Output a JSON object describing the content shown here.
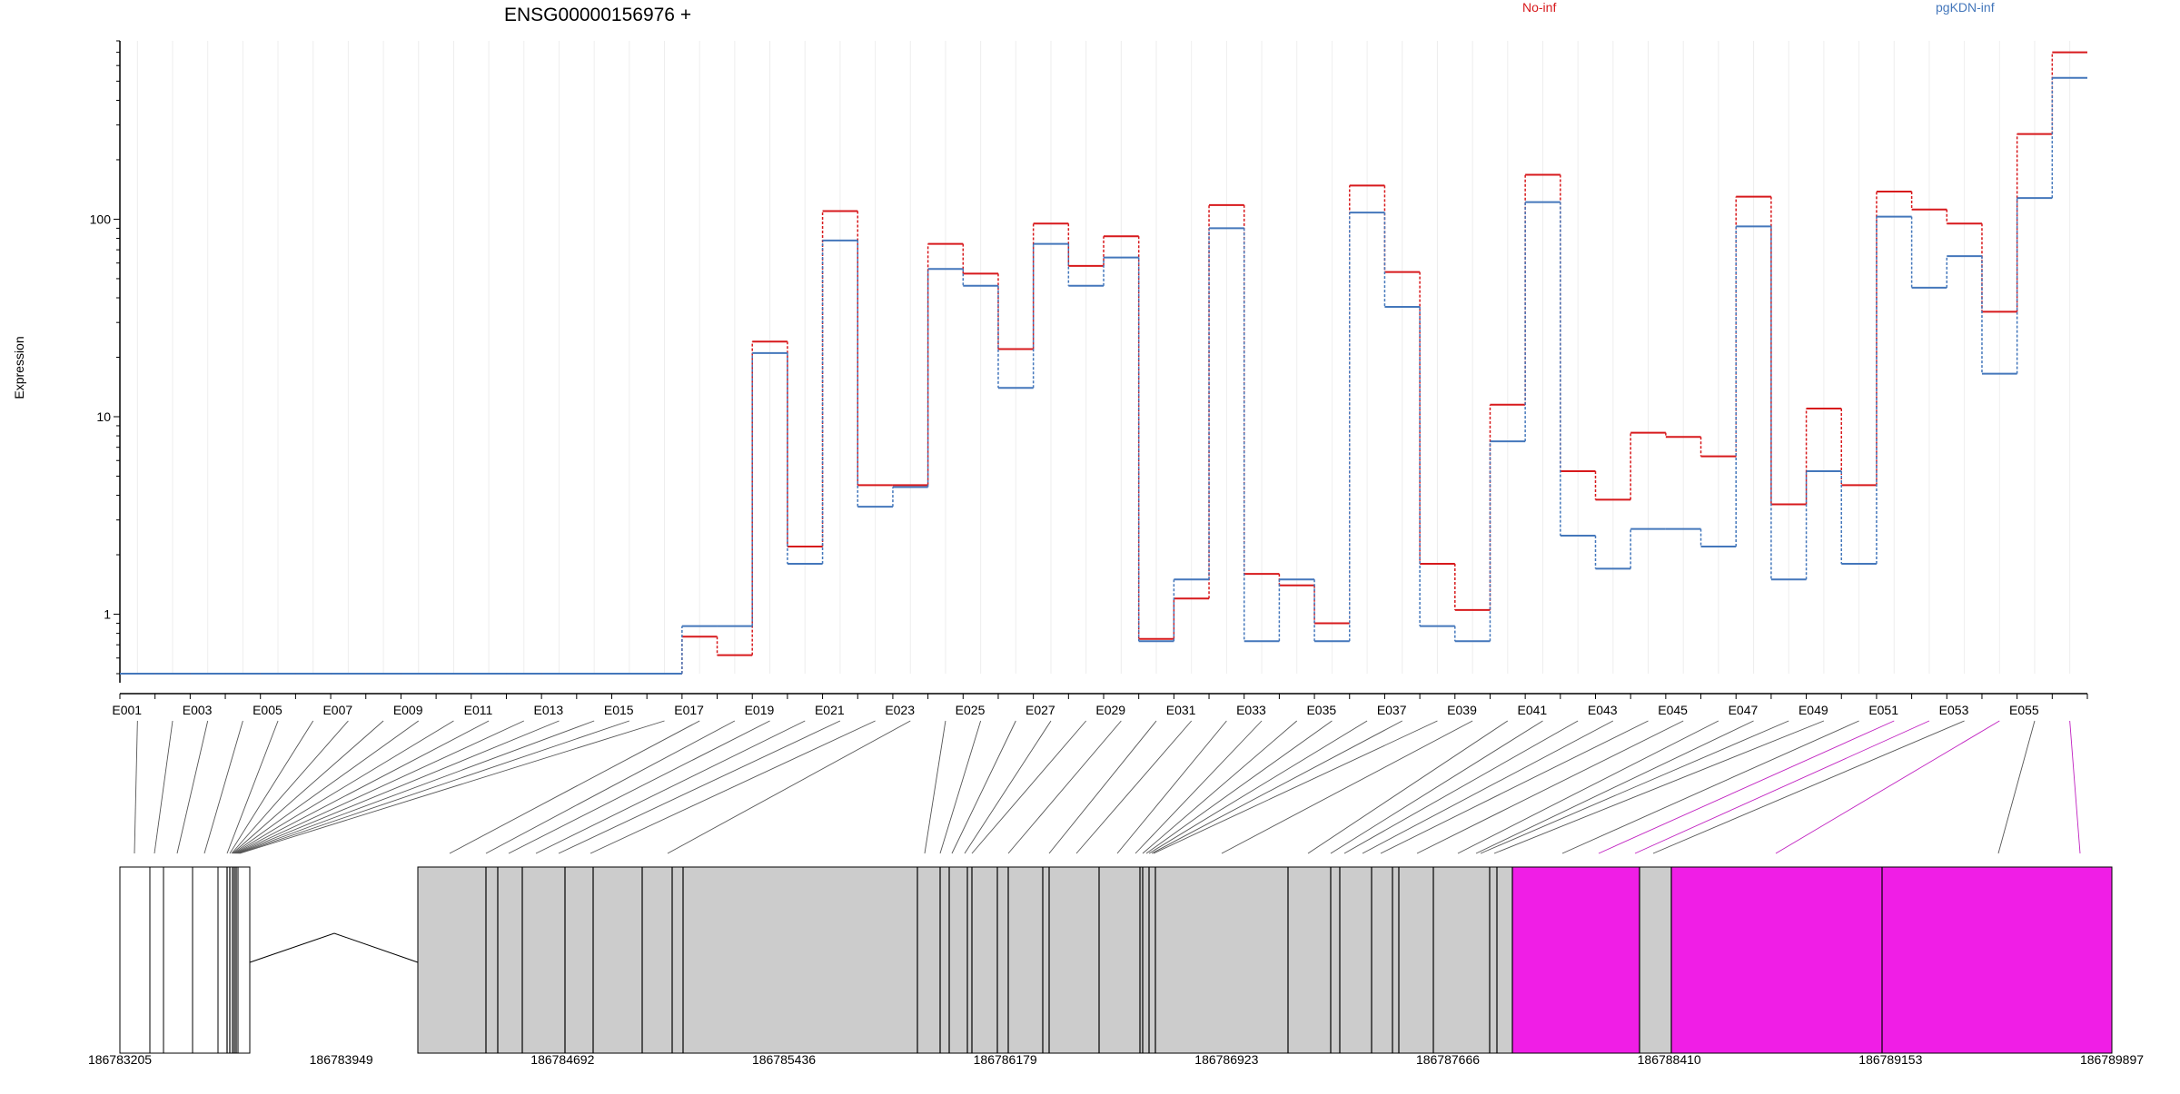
{
  "chart_data": {
    "type": "line",
    "title": "ENSG00000156976 +",
    "ylabel": "Expression",
    "yscale": "log",
    "ylim": [
      0.5,
      800
    ],
    "yticks": [
      1,
      10,
      100
    ],
    "ytick_labels": [
      "1",
      "10",
      "100"
    ],
    "grid": true,
    "legend_position": "top",
    "categories": [
      "E001",
      "E002",
      "E003",
      "E004",
      "E005",
      "E006",
      "E007",
      "E008",
      "E009",
      "E010",
      "E011",
      "E012",
      "E013",
      "E014",
      "E015",
      "E016",
      "E017",
      "E018",
      "E019",
      "E020",
      "E021",
      "E022",
      "E023",
      "E024",
      "E025",
      "E026",
      "E027",
      "E028",
      "E029",
      "E030",
      "E031",
      "E032",
      "E033",
      "E034",
      "E035",
      "E036",
      "E037",
      "E038",
      "E039",
      "E040",
      "E041",
      "E042",
      "E043",
      "E044",
      "E045",
      "E046",
      "E047",
      "E048",
      "E049",
      "E050",
      "E051",
      "E052",
      "E053",
      "E054",
      "E055",
      "E056"
    ],
    "category_labels_shown": [
      "E001",
      "E003",
      "E005",
      "E007",
      "E009",
      "E011",
      "E013",
      "E015",
      "E017",
      "E019",
      "E021",
      "E023",
      "E025",
      "E027",
      "E029",
      "E031",
      "E033",
      "E035",
      "E037",
      "E039",
      "E041",
      "E043",
      "E045",
      "E047",
      "E049",
      "E051",
      "E053",
      "E055"
    ],
    "series": [
      {
        "name": "No-inf",
        "color": "#d7191c",
        "values": [
          0.5,
          0.5,
          0.5,
          0.5,
          0.5,
          0.5,
          0.5,
          0.5,
          0.5,
          0.5,
          0.5,
          0.5,
          0.5,
          0.5,
          0.5,
          0.5,
          0.77,
          0.62,
          24,
          2.2,
          110,
          4.5,
          4.5,
          75,
          53,
          22,
          95,
          58,
          82,
          0.75,
          1.2,
          118,
          1.6,
          1.4,
          0.9,
          148,
          54,
          1.8,
          1.05,
          11.5,
          168,
          5.3,
          3.8,
          8.3,
          7.9,
          6.3,
          130,
          3.6,
          11,
          4.5,
          138,
          112,
          95,
          34,
          270,
          700
        ]
      },
      {
        "name": "pgKDN-inf",
        "color": "#4477bb",
        "values": [
          0.5,
          0.5,
          0.5,
          0.5,
          0.5,
          0.5,
          0.5,
          0.5,
          0.5,
          0.5,
          0.5,
          0.5,
          0.5,
          0.5,
          0.5,
          0.5,
          0.87,
          0.87,
          21,
          1.8,
          78,
          3.5,
          4.4,
          56,
          46,
          14,
          75,
          46,
          64,
          0.73,
          1.5,
          90,
          0.73,
          1.5,
          0.73,
          108,
          36,
          0.87,
          0.73,
          7.5,
          122,
          2.5,
          1.7,
          2.7,
          2.7,
          2.2,
          92,
          1.5,
          5.3,
          1.8,
          103,
          45,
          65,
          16.5,
          128,
          520
        ]
      }
    ],
    "gene_model": {
      "start_label": "186783205",
      "genomic_ticks": [
        "186783205",
        "186783949",
        "186784692",
        "186785436",
        "186786179",
        "186786923",
        "186787666",
        "186788410",
        "186789153",
        "186789897"
      ],
      "exon_highlight_color": "#f01ee6",
      "exon_color": "#cccccc"
    }
  }
}
